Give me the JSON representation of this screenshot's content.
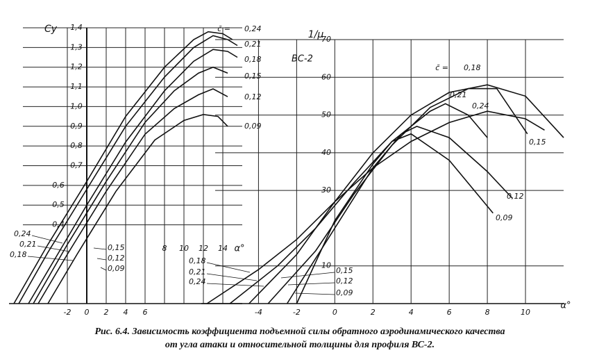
{
  "chart_data": [
    {
      "type": "line",
      "y_label": "Cy",
      "x_label": "α°",
      "prefix": "c̄ =",
      "annotation": "ВС-2",
      "xlim": [
        -8,
        16
      ],
      "ylim": [
        0,
        1.4
      ],
      "grid": true,
      "color": "#111111",
      "xticks": [
        -2,
        0,
        2,
        4,
        6,
        8,
        10,
        12,
        14
      ],
      "yticks": [
        {
          "value": 0.4,
          "label": "0,4"
        },
        {
          "value": 0.5,
          "label": "0,5"
        },
        {
          "value": 0.6,
          "label": "0,6"
        },
        {
          "value": 0.7,
          "label": "0,7"
        },
        {
          "value": 0.8,
          "label": "0,8"
        },
        {
          "value": 0.9,
          "label": "0,9"
        },
        {
          "value": 1.0,
          "label": "1,0"
        },
        {
          "value": 1.1,
          "label": "1,1"
        },
        {
          "value": 1.2,
          "label": "1,2"
        },
        {
          "value": 1.3,
          "label": "1,3"
        },
        {
          "value": 1.4,
          "label": "1,4"
        }
      ],
      "series": [
        {
          "name": "0,24",
          "x": [
            -7.5,
            -4,
            0,
            4,
            8,
            11,
            12.5,
            14,
            15
          ],
          "values": [
            0,
            0.3,
            0.62,
            0.95,
            1.2,
            1.34,
            1.38,
            1.37,
            1.34
          ]
        },
        {
          "name": "0,21",
          "x": [
            -7,
            -4,
            0,
            4,
            8,
            11,
            13,
            14.5,
            15.5
          ],
          "values": [
            0,
            0.26,
            0.58,
            0.9,
            1.15,
            1.3,
            1.36,
            1.34,
            1.31
          ]
        },
        {
          "name": "0,18",
          "x": [
            -6,
            -3,
            0,
            4,
            8,
            11,
            13,
            14.5,
            15.5
          ],
          "values": [
            0,
            0.25,
            0.5,
            0.82,
            1.08,
            1.23,
            1.29,
            1.28,
            1.25
          ]
        },
        {
          "name": "0,15",
          "x": [
            -5.5,
            -2,
            2,
            6,
            9,
            11.5,
            13,
            14.5
          ],
          "values": [
            0,
            0.3,
            0.62,
            0.92,
            1.08,
            1.17,
            1.2,
            1.17
          ]
        },
        {
          "name": "0,12",
          "x": [
            -5,
            -2,
            2,
            6,
            9,
            11.5,
            13,
            14.5
          ],
          "values": [
            0,
            0.25,
            0.57,
            0.86,
            0.99,
            1.06,
            1.09,
            1.05
          ]
        },
        {
          "name": "0,09",
          "x": [
            -4,
            -1,
            3,
            7,
            10,
            12,
            13.5,
            14.5
          ],
          "values": [
            0,
            0.25,
            0.57,
            0.83,
            0.93,
            0.96,
            0.95,
            0.9
          ]
        }
      ]
    },
    {
      "type": "line",
      "y_label": "1/μ",
      "x_label": "α°",
      "prefix": "c̄ =",
      "xlim": [
        -7,
        12
      ],
      "ylim": [
        0,
        70
      ],
      "grid": true,
      "color": "#111111",
      "xticks": [
        -4,
        -2,
        0,
        2,
        4,
        6,
        8,
        10
      ],
      "yticks": [
        10,
        30,
        40,
        50,
        60,
        70
      ],
      "series": [
        {
          "name": "0,18",
          "x": [
            -4.5,
            -2,
            0,
            2,
            4,
            6,
            8,
            10,
            12
          ],
          "values": [
            0,
            13,
            27,
            40,
            50,
            56,
            58,
            55,
            44
          ]
        },
        {
          "name": "0,21",
          "x": [
            -5.5,
            -3,
            -1,
            1,
            3,
            5,
            5.8,
            7,
            8
          ],
          "values": [
            0,
            10,
            20,
            32,
            43,
            51,
            53,
            50,
            44
          ]
        },
        {
          "name": "0,24",
          "x": [
            -6.7,
            -4,
            -2,
            0,
            2,
            4,
            6,
            8,
            10,
            11
          ],
          "values": [
            0,
            9,
            17,
            27,
            36,
            43,
            48,
            51,
            49,
            46
          ]
        },
        {
          "name": "0,15",
          "x": [
            -3.5,
            -1,
            1,
            3,
            5,
            7,
            8.5,
            10.1
          ],
          "values": [
            0,
            14,
            29,
            42,
            52,
            57,
            57,
            45
          ]
        },
        {
          "name": "0,12",
          "x": [
            -2.5,
            0,
            2,
            3.5,
            4.3,
            6,
            8,
            9.3
          ],
          "values": [
            0,
            20,
            36,
            45,
            47,
            44,
            35,
            28
          ]
        },
        {
          "name": "0,09",
          "x": [
            -2,
            0,
            2,
            3,
            4,
            6,
            8.3
          ],
          "values": [
            0,
            22,
            37,
            43,
            45,
            38,
            24
          ]
        }
      ]
    }
  ],
  "caption": [
    "Рис. 6.4. Зависимость коэффициента подъемной силы обратного аэродинамического качества",
    "от угла атаки и относительной толщины для профиля ВС-2."
  ]
}
